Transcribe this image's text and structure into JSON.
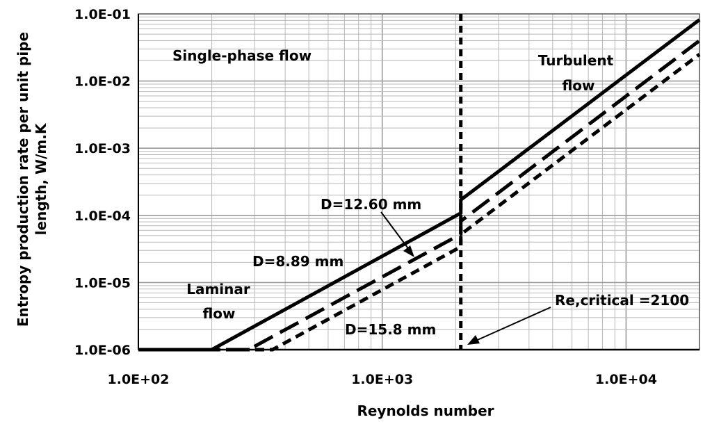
{
  "chart_data": {
    "type": "line",
    "xlabel": "Reynolds number",
    "ylabel_lines": [
      "Entropy production rate per unit pipe",
      "length, W/m.K"
    ],
    "x_scale": "log",
    "y_scale": "log",
    "xlim": [
      100,
      20000
    ],
    "ylim": [
      1e-06,
      0.1
    ],
    "x_ticks": [
      100,
      1000,
      10000
    ],
    "x_tick_labels": [
      "1.0E+02",
      "1.0E+03",
      "1.0E+04"
    ],
    "y_ticks": [
      0.1,
      0.01,
      0.001,
      0.0001,
      1e-05,
      1e-06
    ],
    "y_tick_labels": [
      "1.0E-01",
      "1.0E-02",
      "1.0E-03",
      "1.0E-04",
      "1.0E-05",
      "1.0E-06"
    ],
    "grid": true,
    "legend": "none",
    "critical_re": 2100,
    "series": [
      {
        "name": "D=8.89 mm",
        "style": "solid",
        "points": [
          [
            100,
            1e-06
          ],
          [
            200,
            1e-06
          ],
          [
            2100,
            0.000108
          ],
          [
            2100,
            0.00017
          ],
          [
            20000,
            0.082
          ]
        ]
      },
      {
        "name": "D=12.60 mm",
        "style": "long-dash",
        "points": [
          [
            100,
            1e-06
          ],
          [
            283,
            1e-06
          ],
          [
            2100,
            5.25e-05
          ],
          [
            2100,
            8.2e-05
          ],
          [
            20000,
            0.04
          ]
        ]
      },
      {
        "name": "D=15.8 mm",
        "style": "short-dash",
        "points": [
          [
            100,
            1e-06
          ],
          [
            355,
            1e-06
          ],
          [
            2100,
            3.4e-05
          ],
          [
            2100,
            5.2e-05
          ],
          [
            20000,
            0.025
          ]
        ]
      }
    ],
    "annotations": {
      "single_phase": "Single-phase  flow",
      "turbulent_1": "Turbulent",
      "turbulent_2": "flow",
      "laminar_1": "Laminar",
      "laminar_2": "flow",
      "d1260": "D=12.60 mm",
      "d889": "D=8.89 mm",
      "d158": "D=15.8 mm",
      "re_critical": "Re,critical  =2100"
    }
  }
}
